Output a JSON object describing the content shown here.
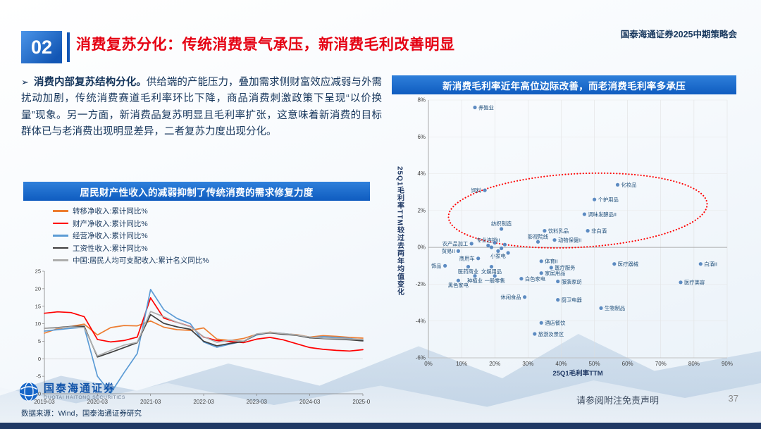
{
  "header": {
    "section_number": "02",
    "title": "消费复苏分化：传统消费景气承压，新消费毛利改善明显",
    "conference": "国泰海通证券2025中期策略会"
  },
  "body": {
    "bullet_lead": "消费内部复苏结构分化。",
    "bullet_text": "供给端的产能压力，叠加需求侧财富效应减弱与外需扰动加剧，传统消费赛道毛利率环比下降，商品消费刺激政策下呈现“以价换量”现象。另一方面，新消费品复苏明显且毛利率扩张，这意味着新消费的目标群体已与老消费出现明显差异，二者复苏力度出现分化。"
  },
  "footer": {
    "logo_name": "国泰海通证券",
    "logo_sub": "GUOTAI HAITONG SECURITIES",
    "source": "数据来源：Wind，国泰海通证券研究",
    "disclaimer": "请参阅附注免责声明",
    "page_number": "37"
  },
  "chart_data": [
    {
      "type": "line",
      "title": "居民财产性收入的减弱抑制了传统消费的需求修复力度",
      "x": [
        "2019-03",
        "2019-06",
        "2019-09",
        "2019-12",
        "2020-03",
        "2020-06",
        "2020-09",
        "2020-12",
        "2021-03",
        "2021-06",
        "2021-09",
        "2021-12",
        "2022-03",
        "2022-06",
        "2022-09",
        "2022-12",
        "2023-03",
        "2023-06",
        "2023-09",
        "2023-12",
        "2024-03",
        "2024-06",
        "2024-09",
        "2024-12",
        "2025-03"
      ],
      "x_tick_labels": [
        "2019-03",
        "2020-03",
        "2021-03",
        "2022-03",
        "2023-03",
        "2024-03",
        "2025-03"
      ],
      "ylim": [
        -10,
        25
      ],
      "y_ticks": [
        -10,
        -5,
        0,
        5,
        10,
        15,
        20,
        25
      ],
      "xlabel": "",
      "ylabel": "",
      "series": [
        {
          "name": "转移净收入:累计同比%",
          "color": "#ED7D31",
          "values": [
            7.3,
            8.6,
            9.2,
            9.9,
            6.8,
            8.9,
            9.5,
            9.4,
            10.8,
            9.0,
            8.3,
            8.1,
            8.8,
            5.6,
            5.2,
            5.8,
            7.0,
            7.6,
            7.1,
            6.9,
            6.2,
            6.6,
            6.4,
            6.1,
            5.9
          ]
        },
        {
          "name": "财产净收入:累计同比%",
          "color": "#FF0000",
          "values": [
            13.0,
            13.4,
            13.2,
            12.0,
            5.5,
            4.8,
            5.2,
            6.2,
            17.4,
            11.6,
            10.4,
            9.2,
            6.2,
            5.2,
            4.9,
            4.6,
            5.6,
            6.1,
            5.4,
            4.3,
            3.2,
            2.7,
            2.4,
            2.2,
            2.6
          ]
        },
        {
          "name": "经营净收入:累计同比%",
          "color": "#5B9BD5",
          "values": [
            7.9,
            8.3,
            8.7,
            9.0,
            -5.0,
            -9.8,
            -4.0,
            1.5,
            19.8,
            14.0,
            11.5,
            10.0,
            4.8,
            3.3,
            4.2,
            5.0,
            6.8,
            7.5,
            7.2,
            6.8,
            6.0,
            6.3,
            6.1,
            5.8,
            5.3
          ]
        },
        {
          "name": "工资性收入:累计同比%",
          "color": "#3F3F3F",
          "values": [
            8.7,
            8.9,
            9.2,
            9.3,
            0.5,
            1.8,
            3.2,
            4.6,
            12.6,
            10.1,
            9.1,
            8.4,
            5.0,
            3.7,
            4.4,
            4.9,
            7.0,
            7.4,
            7.0,
            6.7,
            6.0,
            5.8,
            5.6,
            5.4,
            5.1
          ]
        },
        {
          "name": "中国:居民人均可支配收入:累计名义同比%",
          "color": "#ADADAD",
          "values": [
            8.7,
            8.8,
            9.1,
            8.9,
            0.8,
            2.4,
            3.9,
            4.7,
            13.5,
            12.0,
            10.4,
            9.1,
            6.3,
            4.7,
            5.3,
            5.0,
            7.1,
            7.5,
            7.2,
            6.8,
            6.2,
            5.9,
            5.8,
            5.6,
            5.5
          ]
        }
      ]
    },
    {
      "type": "scatter",
      "title": "新消费毛利率近年高位边际改善，而老消费毛利率多承压",
      "xlabel": "25Q1毛利率TTM",
      "ylabel": "25Q1毛利率TTM较过去两年均值变化",
      "xlim": [
        0,
        90
      ],
      "ylim": [
        -6,
        8
      ],
      "x_ticks": [
        0,
        10,
        20,
        30,
        40,
        50,
        60,
        70,
        80,
        90
      ],
      "y_ticks": [
        8,
        6,
        4,
        2,
        0,
        -2,
        -4,
        -6
      ],
      "point_color": "#4F81BD",
      "label_color": "#1F4E79",
      "highlight_ellipse": {
        "cx": 45,
        "cy": 2.0,
        "rx": 39,
        "ry": 2.0,
        "rotation_deg": -3,
        "color": "#FF0000"
      },
      "points": [
        {
          "label": "养殖业",
          "x": 14,
          "y": 7.6,
          "lp": "r"
        },
        {
          "label": "饲料",
          "x": 17,
          "y": 3.1,
          "lp": "l"
        },
        {
          "label": "化妆品",
          "x": 57,
          "y": 3.4,
          "lp": "r"
        },
        {
          "label": "个护用品",
          "x": 50,
          "y": 2.6,
          "lp": "r"
        },
        {
          "label": "调味发酵品II",
          "x": 47,
          "y": 1.8,
          "lp": "r"
        },
        {
          "label": "纺织制造",
          "x": 22,
          "y": 1.0,
          "lp": "t"
        },
        {
          "label": "饮料乳品",
          "x": 35,
          "y": 0.9,
          "lp": "r"
        },
        {
          "label": "非白酒",
          "x": 48,
          "y": 0.9,
          "lp": "r"
        },
        {
          "label": "动物保健II",
          "x": 38,
          "y": 0.4,
          "lp": "r"
        },
        {
          "label": "影视院线",
          "x": 33,
          "y": 0.3,
          "lp": "t"
        },
        {
          "label": "农产品加工",
          "x": 13,
          "y": 0.2,
          "lp": "l"
        },
        {
          "label": "专业连锁II",
          "x": 18,
          "y": 0.1,
          "lp": "t"
        },
        {
          "label": "贸易II",
          "x": 9,
          "y": -0.2,
          "lp": "l"
        },
        {
          "label": "小家电",
          "x": 21,
          "y": -0.2,
          "lp": "b"
        },
        {
          "label": "商用车",
          "x": 15,
          "y": -0.6,
          "lp": "l"
        },
        {
          "label": "",
          "x": 19,
          "y": 0.0
        },
        {
          "label": "",
          "x": 20,
          "y": 0.25
        },
        {
          "label": "",
          "x": 22,
          "y": -0.05
        },
        {
          "label": "",
          "x": 23,
          "y": 0.15
        },
        {
          "label": "",
          "x": 24,
          "y": -0.3
        },
        {
          "label": "体育II",
          "x": 34,
          "y": -0.75,
          "lp": "r"
        },
        {
          "label": "饰品",
          "x": 5,
          "y": -1.0,
          "lp": "l"
        },
        {
          "label": "医药商业",
          "x": 12,
          "y": -1.05,
          "lp": "b"
        },
        {
          "label": "文娱用品",
          "x": 19,
          "y": -1.05,
          "lp": "b"
        },
        {
          "label": "医疗服务",
          "x": 37,
          "y": -1.1,
          "lp": "r"
        },
        {
          "label": "家居用品",
          "x": 34,
          "y": -1.4,
          "lp": "r"
        },
        {
          "label": "种植业",
          "x": 14,
          "y": -1.55,
          "lp": "b"
        },
        {
          "label": "一般零售",
          "x": 20,
          "y": -1.55,
          "lp": "b"
        },
        {
          "label": "白色家电",
          "x": 28,
          "y": -1.7,
          "lp": "r"
        },
        {
          "label": "黑色家电",
          "x": 9,
          "y": -1.8,
          "lp": "b"
        },
        {
          "label": "服装家纺",
          "x": 39,
          "y": -1.85,
          "lp": "r"
        },
        {
          "label": "医疗器械",
          "x": 56,
          "y": -0.9,
          "lp": "r"
        },
        {
          "label": "白酒II",
          "x": 82,
          "y": -0.9,
          "lp": "r"
        },
        {
          "label": "医疗美容",
          "x": 76,
          "y": -1.9,
          "lp": "r"
        },
        {
          "label": "休闲食品",
          "x": 29,
          "y": -2.7,
          "lp": "l"
        },
        {
          "label": "厨卫电器",
          "x": 39,
          "y": -2.85,
          "lp": "r"
        },
        {
          "label": "生物制品",
          "x": 52,
          "y": -3.3,
          "lp": "r"
        },
        {
          "label": "酒店餐饮",
          "x": 34,
          "y": -4.1,
          "lp": "r"
        },
        {
          "label": "旅游及景区",
          "x": 32,
          "y": -4.7,
          "lp": "r"
        }
      ]
    }
  ]
}
